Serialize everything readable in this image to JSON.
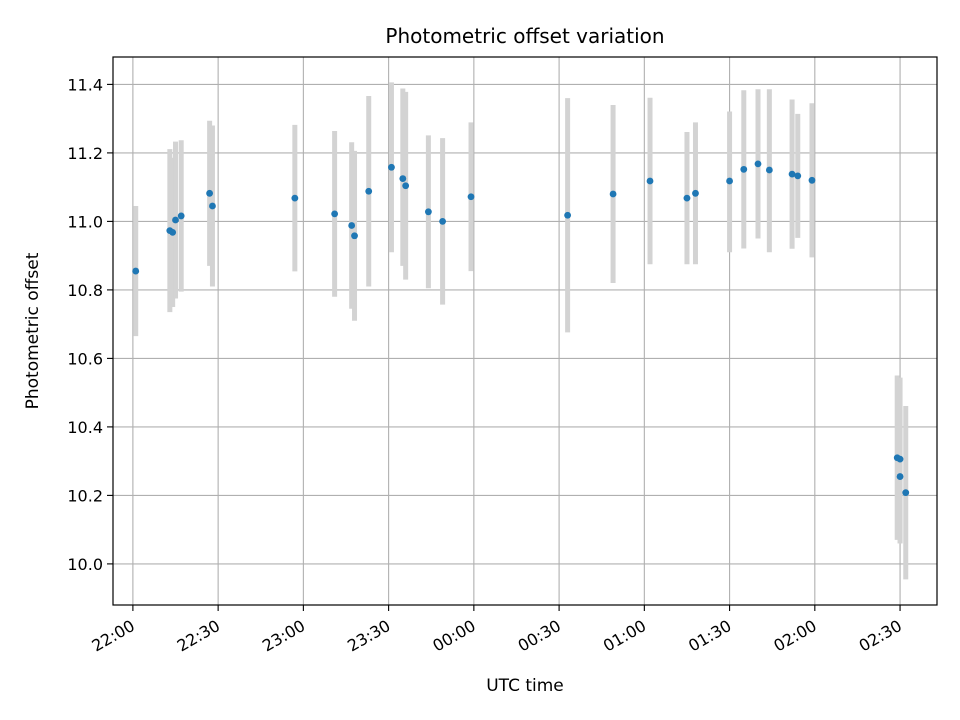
{
  "chart_data": {
    "type": "scatter",
    "title": "Photometric offset variation",
    "xlabel": "UTC time",
    "ylabel": "Photometric offset",
    "x_ticks": [
      "22:00",
      "22:30",
      "23:00",
      "23:30",
      "00:00",
      "00:30",
      "01:00",
      "01:30",
      "02:00",
      "02:30"
    ],
    "y_ticks": [
      "10.0",
      "10.2",
      "10.4",
      "10.6",
      "10.8",
      "11.0",
      "11.2",
      "11.4"
    ],
    "xlim": [
      "21:53",
      "02:43"
    ],
    "ylim": [
      9.88,
      11.48
    ],
    "grid": true,
    "colors": {
      "point": "#1f77b4",
      "errorbar": "#d3d3d3",
      "grid": "#b0b0b0"
    },
    "points": [
      {
        "x": "22:01",
        "y": 10.855,
        "lo": 10.665,
        "hi": 11.045
      },
      {
        "x": "22:13",
        "y": 10.973,
        "lo": 10.735,
        "hi": 11.211
      },
      {
        "x": "22:14",
        "y": 10.968,
        "lo": 10.75,
        "hi": 11.186
      },
      {
        "x": "22:15",
        "y": 11.004,
        "lo": 10.775,
        "hi": 11.233
      },
      {
        "x": "22:17",
        "y": 11.016,
        "lo": 10.795,
        "hi": 11.237
      },
      {
        "x": "22:27",
        "y": 11.082,
        "lo": 10.87,
        "hi": 11.294
      },
      {
        "x": "22:28",
        "y": 11.045,
        "lo": 10.81,
        "hi": 11.28
      },
      {
        "x": "22:57",
        "y": 11.068,
        "lo": 10.854,
        "hi": 11.282
      },
      {
        "x": "23:11",
        "y": 11.022,
        "lo": 10.78,
        "hi": 11.264
      },
      {
        "x": "23:17",
        "y": 10.988,
        "lo": 10.745,
        "hi": 11.231
      },
      {
        "x": "23:18",
        "y": 10.958,
        "lo": 10.71,
        "hi": 11.206
      },
      {
        "x": "23:23",
        "y": 11.088,
        "lo": 10.81,
        "hi": 11.366
      },
      {
        "x": "23:31",
        "y": 11.158,
        "lo": 10.91,
        "hi": 11.406
      },
      {
        "x": "23:35",
        "y": 11.125,
        "lo": 10.87,
        "hi": 11.388
      },
      {
        "x": "23:36",
        "y": 11.104,
        "lo": 10.83,
        "hi": 11.378
      },
      {
        "x": "23:44",
        "y": 11.028,
        "lo": 10.805,
        "hi": 11.251
      },
      {
        "x": "23:49",
        "y": 11.0,
        "lo": 10.757,
        "hi": 11.243
      },
      {
        "x": "23:59",
        "y": 11.072,
        "lo": 10.855,
        "hi": 11.289
      },
      {
        "x": "00:33",
        "y": 11.018,
        "lo": 10.676,
        "hi": 11.36
      },
      {
        "x": "00:49",
        "y": 11.08,
        "lo": 10.82,
        "hi": 11.34
      },
      {
        "x": "01:02",
        "y": 11.118,
        "lo": 10.875,
        "hi": 11.361
      },
      {
        "x": "01:15",
        "y": 11.068,
        "lo": 10.875,
        "hi": 11.261
      },
      {
        "x": "01:18",
        "y": 11.082,
        "lo": 10.875,
        "hi": 11.289
      },
      {
        "x": "01:30",
        "y": 11.118,
        "lo": 10.91,
        "hi": 11.321
      },
      {
        "x": "01:35",
        "y": 11.152,
        "lo": 10.921,
        "hi": 11.383
      },
      {
        "x": "01:40",
        "y": 11.168,
        "lo": 10.95,
        "hi": 11.386
      },
      {
        "x": "01:44",
        "y": 11.15,
        "lo": 10.91,
        "hi": 11.386
      },
      {
        "x": "01:52",
        "y": 11.138,
        "lo": 10.92,
        "hi": 11.356
      },
      {
        "x": "01:54",
        "y": 11.133,
        "lo": 10.952,
        "hi": 11.314
      },
      {
        "x": "01:59",
        "y": 11.12,
        "lo": 10.895,
        "hi": 11.345
      },
      {
        "x": "02:29",
        "y": 10.31,
        "lo": 10.07,
        "hi": 10.55
      },
      {
        "x": "02:30",
        "y": 10.306,
        "lo": 10.06,
        "hi": 10.544
      },
      {
        "x": "02:30",
        "y": 10.255,
        "lo": 10.06,
        "hi": 10.45
      },
      {
        "x": "02:32",
        "y": 10.208,
        "lo": 9.955,
        "hi": 10.461
      }
    ]
  }
}
